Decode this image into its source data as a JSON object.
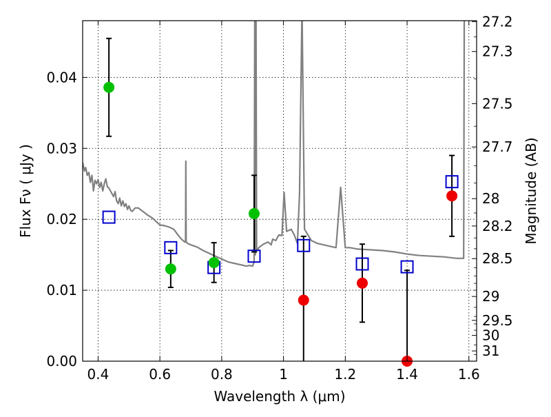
{
  "chart_data": {
    "type": "scatter",
    "xlabel": "Wavelength  λ (μm)",
    "ylabel": "Flux  Fν  ( μJy )",
    "ylabel_right": "Magnitude (AB)",
    "xlim": [
      0.35,
      1.625
    ],
    "ylim": [
      0.0,
      0.048
    ],
    "grid": true,
    "x_ticks": [
      0.4,
      0.6,
      0.8,
      1.0,
      1.2,
      1.4,
      1.6
    ],
    "x_tick_labels": [
      "0.4",
      "0.6",
      "0.8",
      "1",
      "1.2",
      "1.4",
      "1.6"
    ],
    "y_ticks": [
      0.0,
      0.01,
      0.02,
      0.03,
      0.04
    ],
    "y_tick_labels": [
      "0.00",
      "0.01",
      "0.02",
      "0.03",
      "0.04"
    ],
    "mag_ticks": [
      27.2,
      27.3,
      27.5,
      27.7,
      28,
      28.2,
      28.5,
      29,
      29.5,
      30,
      31
    ],
    "mag_tick_labels": [
      "27.2",
      "27.3",
      "27.5",
      "27.7",
      "28",
      "28.2",
      "28.5",
      "29",
      "29.5",
      "30",
      "31"
    ],
    "colors": {
      "green": "#00c000",
      "red": "#ee0000",
      "blue": "#0000cc",
      "template": "#808080",
      "errorbar": "#000000"
    },
    "detections": [
      {
        "x": 0.435,
        "y": 0.0386,
        "yerr": 0.0069
      },
      {
        "x": 0.635,
        "y": 0.013,
        "yerr": 0.0026
      },
      {
        "x": 0.775,
        "y": 0.0139,
        "yerr": 0.0028
      },
      {
        "x": 0.905,
        "y": 0.0208,
        "yerr": 0.0054
      }
    ],
    "nondetections": [
      {
        "x": 1.065,
        "y": 0.0086,
        "yerr": 0.009
      },
      {
        "x": 1.255,
        "y": 0.011,
        "yerr": 0.0055
      },
      {
        "x": 1.4,
        "y": 0.0,
        "yerr": 0.0128
      },
      {
        "x": 1.545,
        "y": 0.0233,
        "yerr": 0.0057
      }
    ],
    "model": [
      {
        "x": 0.435,
        "y": 0.0203
      },
      {
        "x": 0.635,
        "y": 0.016
      },
      {
        "x": 0.775,
        "y": 0.0132
      },
      {
        "x": 0.905,
        "y": 0.0148
      },
      {
        "x": 1.065,
        "y": 0.0163
      },
      {
        "x": 1.255,
        "y": 0.0137
      },
      {
        "x": 1.4,
        "y": 0.0133
      },
      {
        "x": 1.545,
        "y": 0.0253
      }
    ],
    "template": [
      [
        0.35,
        0.028
      ],
      [
        0.356,
        0.0268
      ],
      [
        0.36,
        0.0273
      ],
      [
        0.365,
        0.0262
      ],
      [
        0.37,
        0.0266
      ],
      [
        0.375,
        0.0252
      ],
      [
        0.38,
        0.0262
      ],
      [
        0.385,
        0.024
      ],
      [
        0.39,
        0.0255
      ],
      [
        0.395,
        0.025
      ],
      [
        0.4,
        0.0256
      ],
      [
        0.405,
        0.0245
      ],
      [
        0.41,
        0.0252
      ],
      [
        0.415,
        0.024
      ],
      [
        0.42,
        0.025
      ],
      [
        0.425,
        0.0257
      ],
      [
        0.43,
        0.0246
      ],
      [
        0.435,
        0.0244
      ],
      [
        0.445,
        0.0236
      ],
      [
        0.45,
        0.0232
      ],
      [
        0.455,
        0.0239
      ],
      [
        0.46,
        0.0226
      ],
      [
        0.465,
        0.0222
      ],
      [
        0.47,
        0.023
      ],
      [
        0.475,
        0.0219
      ],
      [
        0.48,
        0.0226
      ],
      [
        0.485,
        0.0218
      ],
      [
        0.49,
        0.0222
      ],
      [
        0.495,
        0.0214
      ],
      [
        0.5,
        0.0219
      ],
      [
        0.505,
        0.0213
      ],
      [
        0.51,
        0.0211
      ],
      [
        0.52,
        0.0216
      ],
      [
        0.53,
        0.0216
      ],
      [
        0.545,
        0.0211
      ],
      [
        0.56,
        0.0206
      ],
      [
        0.575,
        0.0202
      ],
      [
        0.59,
        0.0196
      ],
      [
        0.6,
        0.0192
      ],
      [
        0.615,
        0.0191
      ],
      [
        0.63,
        0.0189
      ],
      [
        0.645,
        0.0186
      ],
      [
        0.66,
        0.0177
      ],
      [
        0.67,
        0.0172
      ],
      [
        0.68,
        0.0168
      ],
      [
        0.683,
        0.0168
      ],
      [
        0.684,
        0.0282
      ],
      [
        0.685,
        0.0168
      ],
      [
        0.69,
        0.0166
      ],
      [
        0.7,
        0.0164
      ],
      [
        0.72,
        0.0161
      ],
      [
        0.74,
        0.0156
      ],
      [
        0.76,
        0.0152
      ],
      [
        0.78,
        0.0148
      ],
      [
        0.8,
        0.0144
      ],
      [
        0.82,
        0.014
      ],
      [
        0.84,
        0.0138
      ],
      [
        0.86,
        0.0136
      ],
      [
        0.88,
        0.0134
      ],
      [
        0.89,
        0.0135
      ],
      [
        0.9,
        0.0134
      ],
      [
        0.905,
        0.014
      ],
      [
        0.907,
        0.05
      ],
      [
        0.909,
        0.015
      ],
      [
        0.911,
        0.05
      ],
      [
        0.913,
        0.0155
      ],
      [
        0.92,
        0.016
      ],
      [
        0.935,
        0.0165
      ],
      [
        0.95,
        0.0168
      ],
      [
        0.96,
        0.0164
      ],
      [
        0.965,
        0.0172
      ],
      [
        0.975,
        0.017
      ],
      [
        0.985,
        0.0178
      ],
      [
        0.995,
        0.0177
      ],
      [
        1.002,
        0.0238
      ],
      [
        1.01,
        0.0183
      ],
      [
        1.025,
        0.0186
      ],
      [
        1.035,
        0.0178
      ],
      [
        1.045,
        0.0166
      ],
      [
        1.052,
        0.0236
      ],
      [
        1.06,
        0.05
      ],
      [
        1.068,
        0.0186
      ],
      [
        1.09,
        0.017
      ],
      [
        1.11,
        0.0166
      ],
      [
        1.13,
        0.0164
      ],
      [
        1.15,
        0.0162
      ],
      [
        1.17,
        0.016
      ],
      [
        1.185,
        0.0245
      ],
      [
        1.2,
        0.016
      ],
      [
        1.215,
        0.016
      ],
      [
        1.24,
        0.0158
      ],
      [
        1.28,
        0.0157
      ],
      [
        1.32,
        0.0156
      ],
      [
        1.36,
        0.0154
      ],
      [
        1.4,
        0.0151
      ],
      [
        1.44,
        0.0149
      ],
      [
        1.48,
        0.0148
      ],
      [
        1.52,
        0.0147
      ],
      [
        1.56,
        0.0145
      ],
      [
        1.583,
        0.0145
      ],
      [
        1.585,
        0.05
      ],
      [
        1.625,
        0.05
      ]
    ]
  }
}
